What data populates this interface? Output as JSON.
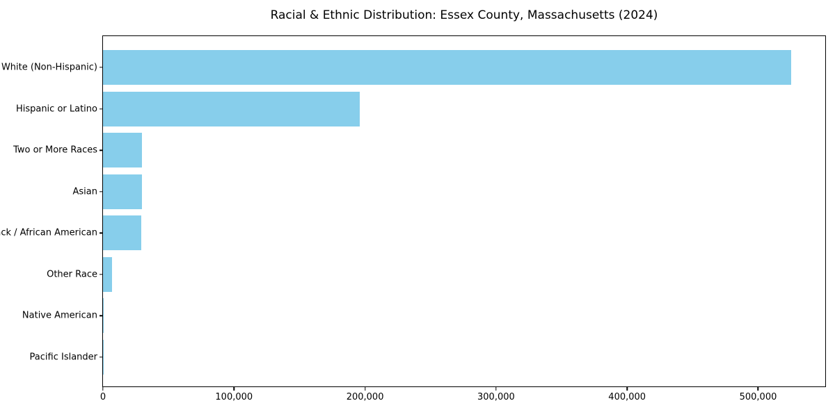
{
  "chart_data": {
    "type": "bar",
    "orientation": "horizontal",
    "title": "Racial & Ethnic Distribution: Essex County, Massachusetts (2024)",
    "categories": [
      "White (Non-Hispanic)",
      "Hispanic or Latino",
      "Two or More Races",
      "Asian",
      "Black / African American",
      "Other Race",
      "Native American",
      "Pacific Islander"
    ],
    "values": [
      525000,
      196000,
      29700,
      29500,
      29200,
      7000,
      600,
      150
    ],
    "xlabel": "",
    "ylabel": "",
    "xlim": [
      0,
      551250
    ],
    "x_ticks": [
      0,
      100000,
      200000,
      300000,
      400000,
      500000
    ],
    "x_tick_labels": [
      "0",
      "100,000",
      "200,000",
      "300,000",
      "400,000",
      "500,000"
    ],
    "bar_color": "#87CEEB",
    "axis_color": "#000000",
    "text_color": "#000000",
    "background_color": "#FFFFFF",
    "grid": false,
    "legend": null
  }
}
